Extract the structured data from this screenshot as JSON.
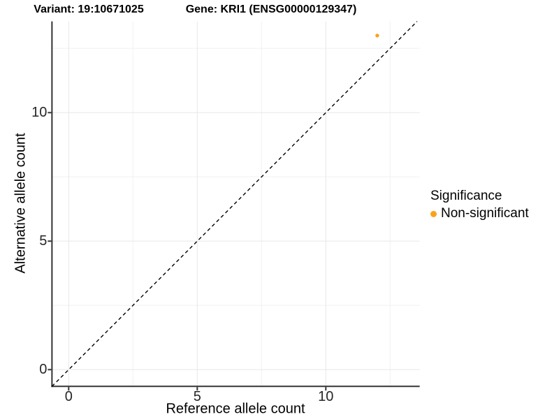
{
  "header": {
    "variant_title": "Variant: 19:10671025",
    "gene_title": "Gene: KRI1 (ENSG00000129347)"
  },
  "axes": {
    "x_label": "Reference allele count",
    "y_label": "Alternative allele count",
    "x_tick_labels": [
      "0",
      "5",
      "10"
    ],
    "y_tick_labels": [
      "0",
      "5",
      "10"
    ]
  },
  "legend": {
    "title": "Significance",
    "items": [
      {
        "label": "Non-significant",
        "color": "#FAA21E",
        "marker": "circle"
      }
    ]
  },
  "colors": {
    "background": "#FFFFFF",
    "point": "#FAA21E",
    "grid_major": "#E7E7E7",
    "grid_minor": "#F1F1F1",
    "axis_line": "#333333",
    "tick_mark": "#333333",
    "reference_line": "#000000",
    "text": "#000000"
  },
  "chart_data": {
    "type": "scatter",
    "title_left": "Variant: 19:10671025",
    "title_right": "Gene: KRI1 (ENSG00000129347)",
    "xlabel": "Reference allele count",
    "ylabel": "Alternative allele count",
    "xlim": [
      -0.65,
      13.65
    ],
    "ylim": [
      -0.65,
      13.55
    ],
    "x_ticks": [
      0,
      5,
      10
    ],
    "y_ticks": [
      0,
      5,
      10
    ],
    "x_minor_gridlines": [
      2.5,
      7.5,
      12.5
    ],
    "y_minor_gridlines": [
      2.5,
      7.5,
      12.5
    ],
    "grid": "major and minor light-gray gridlines on white panel",
    "axis_lines": "solid dark left and bottom axis lines with outward tick marks",
    "points": [
      {
        "x": 12,
        "y": 13,
        "series": "Non-significant"
      }
    ],
    "series": [
      {
        "name": "Non-significant",
        "color": "#FAA21E"
      }
    ],
    "reference_line": {
      "kind": "identity",
      "slope": 1,
      "intercept": 0,
      "linestyle": "dashed",
      "color": "#000000"
    },
    "legend_position": "right-middle"
  }
}
